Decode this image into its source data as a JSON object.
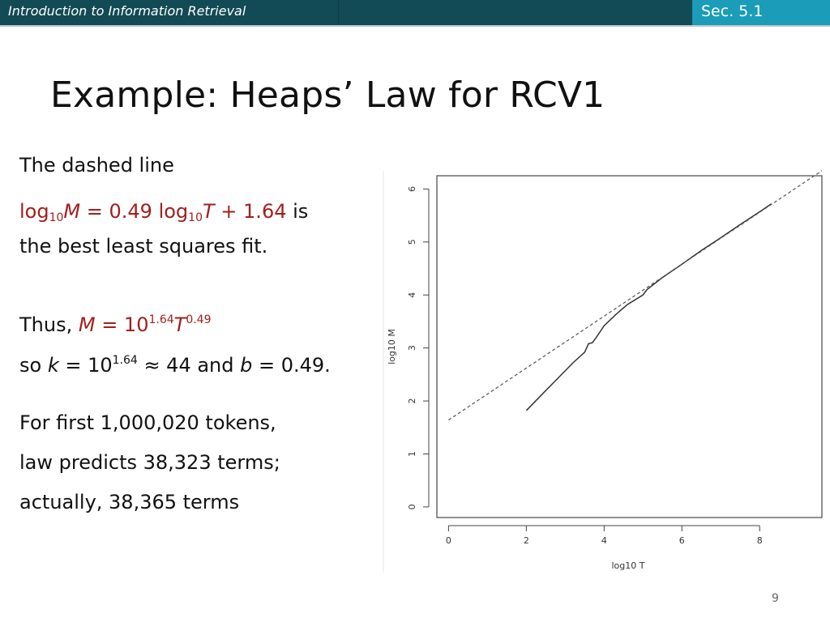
{
  "header": {
    "course_title": "Introduction to Information Retrieval",
    "section": "Sec. 5.1"
  },
  "slide": {
    "title": "Example: Heaps’ Law for RCV1",
    "page_number": "9",
    "colors": {
      "header_bg": "#124a55",
      "section_bg": "#1b9cb8",
      "emphasis": "#a0201e"
    }
  },
  "body": {
    "line1": "The dashed line",
    "eq": {
      "log": "log",
      "sub10": "10",
      "M": "M",
      "eq_part": " = 0.49 log",
      "T": "T",
      "plus": " + 1.64",
      "after": " is"
    },
    "line3": "the best least squares fit.",
    "thus": {
      "prefix": "Thus, ",
      "M": "M",
      "mid": " = 10",
      "exp1": "1.64",
      "T": "T",
      "exp2": "0.49"
    },
    "so": {
      "prefix": "so ",
      "k": "k",
      "mid": " = 10",
      "exp": "1.64",
      "after": " ≈ 44 and ",
      "b": "b",
      "end": " = 0.49."
    },
    "line7": "For first 1,000,020 tokens,",
    "line8": "law predicts 38,323 terms;",
    "line9": "actually, 38,365 terms"
  },
  "chart_data": {
    "type": "line",
    "xlabel": "log10 T",
    "ylabel": "log10 M",
    "xlim": [
      -0.3,
      9.6
    ],
    "ylim": [
      -0.2,
      6.25
    ],
    "xticks": [
      0,
      2,
      4,
      6,
      8
    ],
    "yticks": [
      0,
      1,
      2,
      3,
      4,
      5,
      6
    ],
    "series": [
      {
        "style": "solid",
        "x": [
          2.0,
          2.4,
          2.8,
          3.2,
          3.5,
          3.6,
          3.7,
          3.8,
          4.0,
          4.3,
          4.6,
          5.0,
          5.1,
          5.5,
          6.0,
          6.5,
          7.0,
          7.5,
          8.0,
          8.3
        ],
        "y": [
          1.82,
          2.12,
          2.42,
          2.72,
          2.92,
          3.08,
          3.1,
          3.2,
          3.42,
          3.63,
          3.82,
          4.0,
          4.1,
          4.33,
          4.58,
          4.84,
          5.08,
          5.33,
          5.57,
          5.72
        ]
      },
      {
        "style": "dashed",
        "x": [
          0,
          9.6
        ],
        "y": [
          1.64,
          6.344
        ]
      }
    ]
  }
}
